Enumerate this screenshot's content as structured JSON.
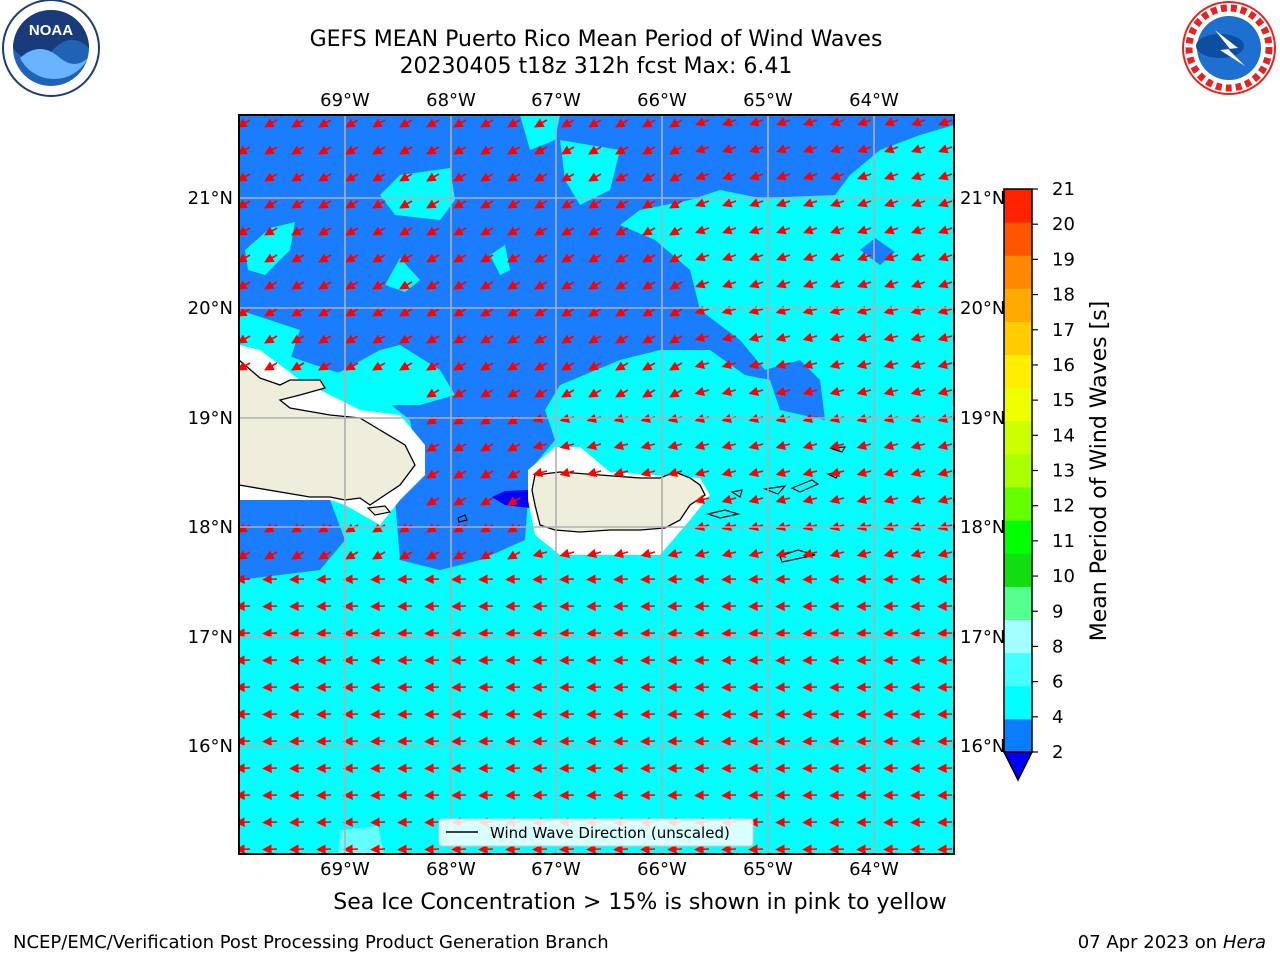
{
  "title": {
    "line1": "GEFS MEAN Puerto Rico Mean Period of Wind Waves",
    "line2": "20230405 t18z 312h fcst   Max: 6.41"
  },
  "logos": {
    "noaa": {
      "text": "NOAA",
      "ring_text": "NATIONAL OCEANIC AND ATMOSPHERIC ADMINISTRATION · U.S. DEPARTMENT OF COMMERCE"
    },
    "nws": {
      "ring_text": "NATIONAL WEATHER SERVICE"
    }
  },
  "map": {
    "lon_labels": [
      "69°W",
      "68°W",
      "67°W",
      "66°W",
      "65°W",
      "64°W"
    ],
    "lat_labels": [
      "21°N",
      "20°N",
      "19°N",
      "18°N",
      "17°N",
      "16°N"
    ],
    "colors": {
      "ocean_dark": "#1a7cff",
      "ocean_light": "#00ffff",
      "land": "#efeedd",
      "arrow": "#ff0000",
      "grid": "#b0b0b0"
    },
    "legend": {
      "label": "Wind Wave Direction (unscaled)"
    }
  },
  "colorbar": {
    "label": "Mean Period of Wind Waves [s]",
    "ticks": [
      "2",
      "4",
      "6",
      "8",
      "9",
      "10",
      "11",
      "12",
      "13",
      "14",
      "15",
      "16",
      "17",
      "18",
      "19",
      "20",
      "21"
    ],
    "colors": [
      "#0a7dff",
      "#00ffff",
      "#44ffff",
      "#a4ffff",
      "#55ff90",
      "#11dd11",
      "#00ff00",
      "#66ff00",
      "#aaff00",
      "#ccff00",
      "#eeff00",
      "#ffee00",
      "#ffcc00",
      "#ffaa00",
      "#ff8800",
      "#ff5500",
      "#ff2200"
    ],
    "underflow_color": "#0000ff"
  },
  "subtitle": "Sea Ice Concentration > 15% is shown in pink to yellow",
  "footer": {
    "left": "NCEP/EMC/Verification Post Processing Product Generation Branch",
    "right_date": "07 Apr 2023 on ",
    "right_host": "Hera"
  }
}
